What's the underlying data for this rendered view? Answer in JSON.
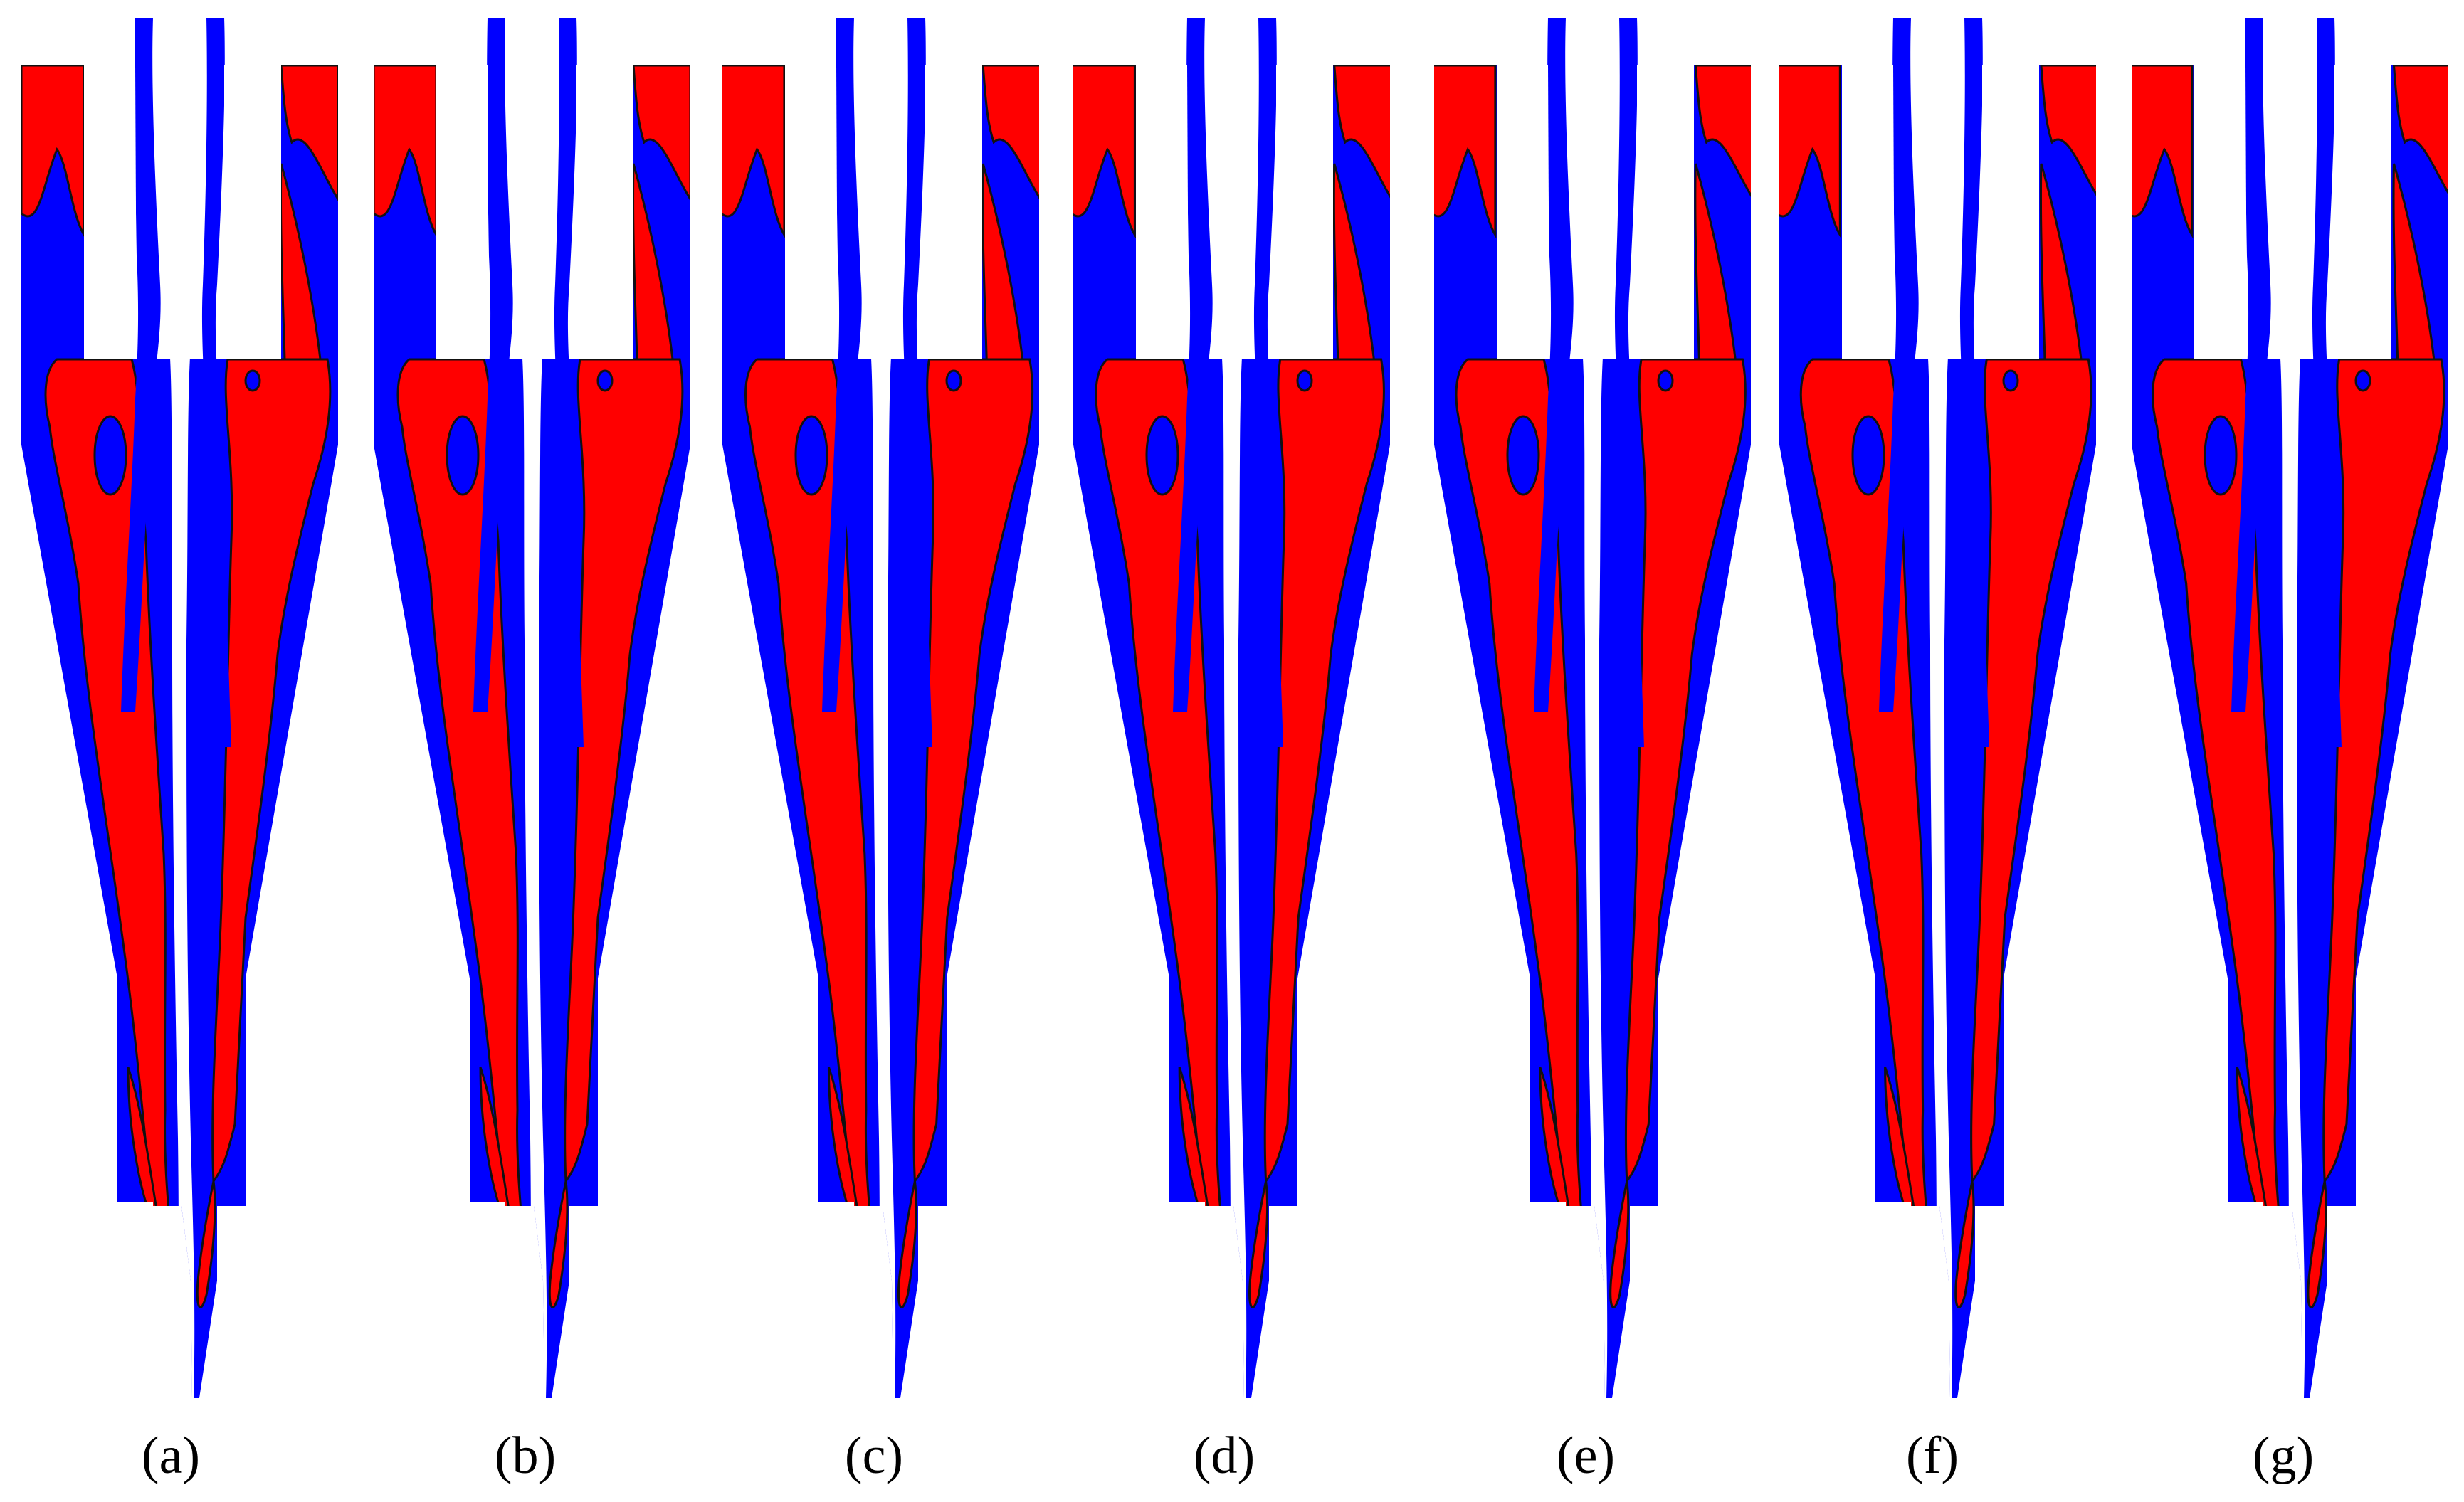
{
  "figure": {
    "panels": [
      {
        "label": "(a)"
      },
      {
        "label": "(b)"
      },
      {
        "label": "(c)"
      },
      {
        "label": "(d)"
      },
      {
        "label": "(e)"
      },
      {
        "label": "(f)"
      },
      {
        "label": "(g)"
      }
    ],
    "colors": {
      "phase_red": "#ff0000",
      "phase_blue": "#0000ff",
      "interface_line": "#111111",
      "air_core": "#ffffff",
      "background": "#ffffff"
    }
  }
}
